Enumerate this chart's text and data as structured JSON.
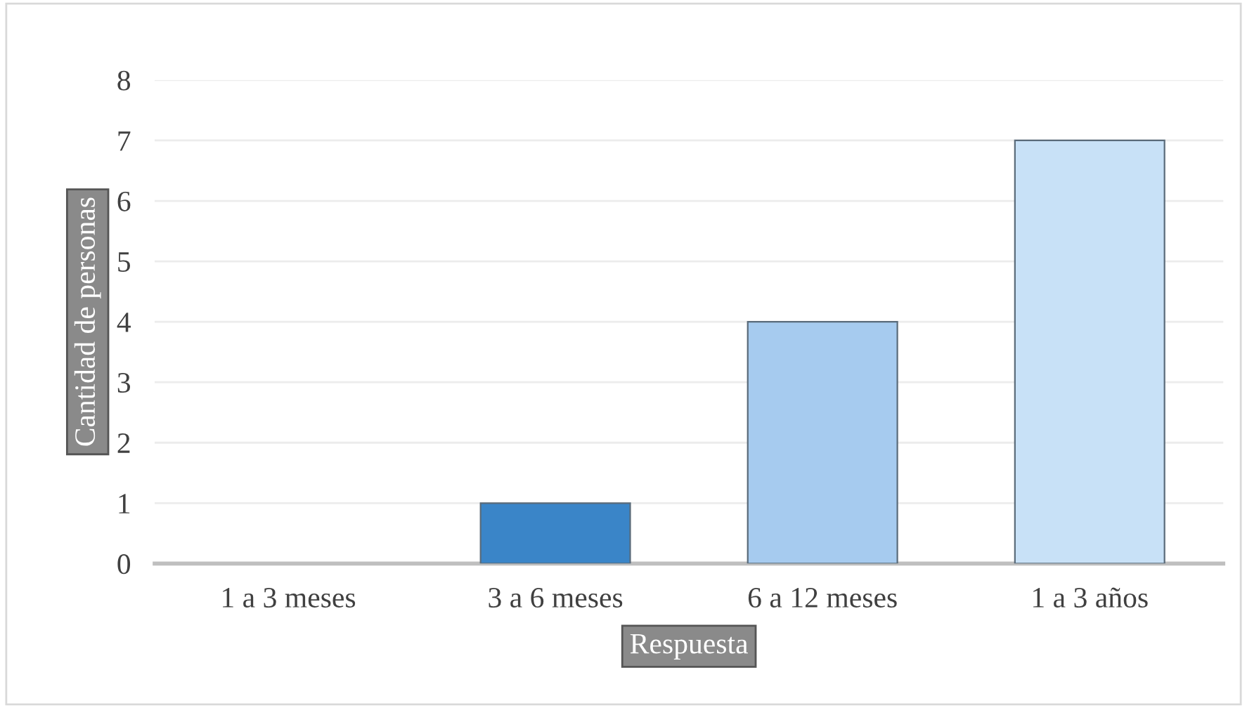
{
  "chart_data": {
    "type": "bar",
    "categories": [
      "1 a 3 meses",
      "3 a 6 meses",
      "6 a 12 meses",
      "1 a 3 años"
    ],
    "values": [
      0,
      1,
      4,
      7
    ],
    "colors": [
      "#3a85c8",
      "#3a85c8",
      "#a6cbef",
      "#c8e1f7"
    ],
    "xlabel": "Respuesta",
    "ylabel": "Cantidad de personas",
    "ylim": [
      0,
      8
    ],
    "yticks": [
      0,
      1,
      2,
      3,
      4,
      5,
      6,
      7,
      8
    ],
    "grid": "y",
    "legend": false
  }
}
